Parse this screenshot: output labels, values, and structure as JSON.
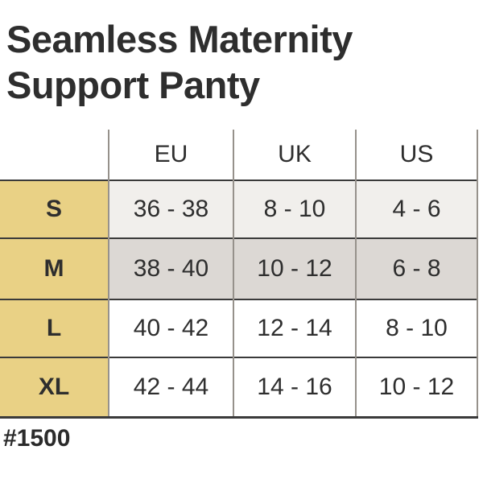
{
  "title_lines": [
    "Seamless Maternity",
    "Support Panty"
  ],
  "footer": {
    "product_code": "#1500"
  },
  "chart_data": {
    "type": "table",
    "title": "Seamless Maternity Support Panty",
    "columns": [
      "",
      "EU",
      "UK",
      "US"
    ],
    "rows": [
      {
        "size": "S",
        "values": [
          "36 - 38",
          "8 - 10",
          "4 - 6"
        ]
      },
      {
        "size": "M",
        "values": [
          "38 - 40",
          "10 - 12",
          "6 - 8"
        ]
      },
      {
        "size": "L",
        "values": [
          "40 - 42",
          "12 - 14",
          "8 - 10"
        ]
      },
      {
        "size": "XL",
        "values": [
          "42 - 44",
          "14 - 16",
          "10 - 12"
        ]
      }
    ],
    "layout_hints": {
      "size_column_highlighted": true,
      "row_s_shading": "light-gray",
      "row_m_shading": "medium-gray",
      "row_l_shading": "white",
      "row_xl_shading": "white"
    }
  },
  "colors": {
    "size_column_bg": "#e9d185",
    "row_s_bg": "#f1efec",
    "row_m_bg": "#dcd8d4",
    "row_l_bg": "#ffffff",
    "row_xl_bg": "#ffffff",
    "horizontal_line": "#3a3a3a",
    "vertical_line": "#96918b",
    "text": "#2e2e2e"
  }
}
